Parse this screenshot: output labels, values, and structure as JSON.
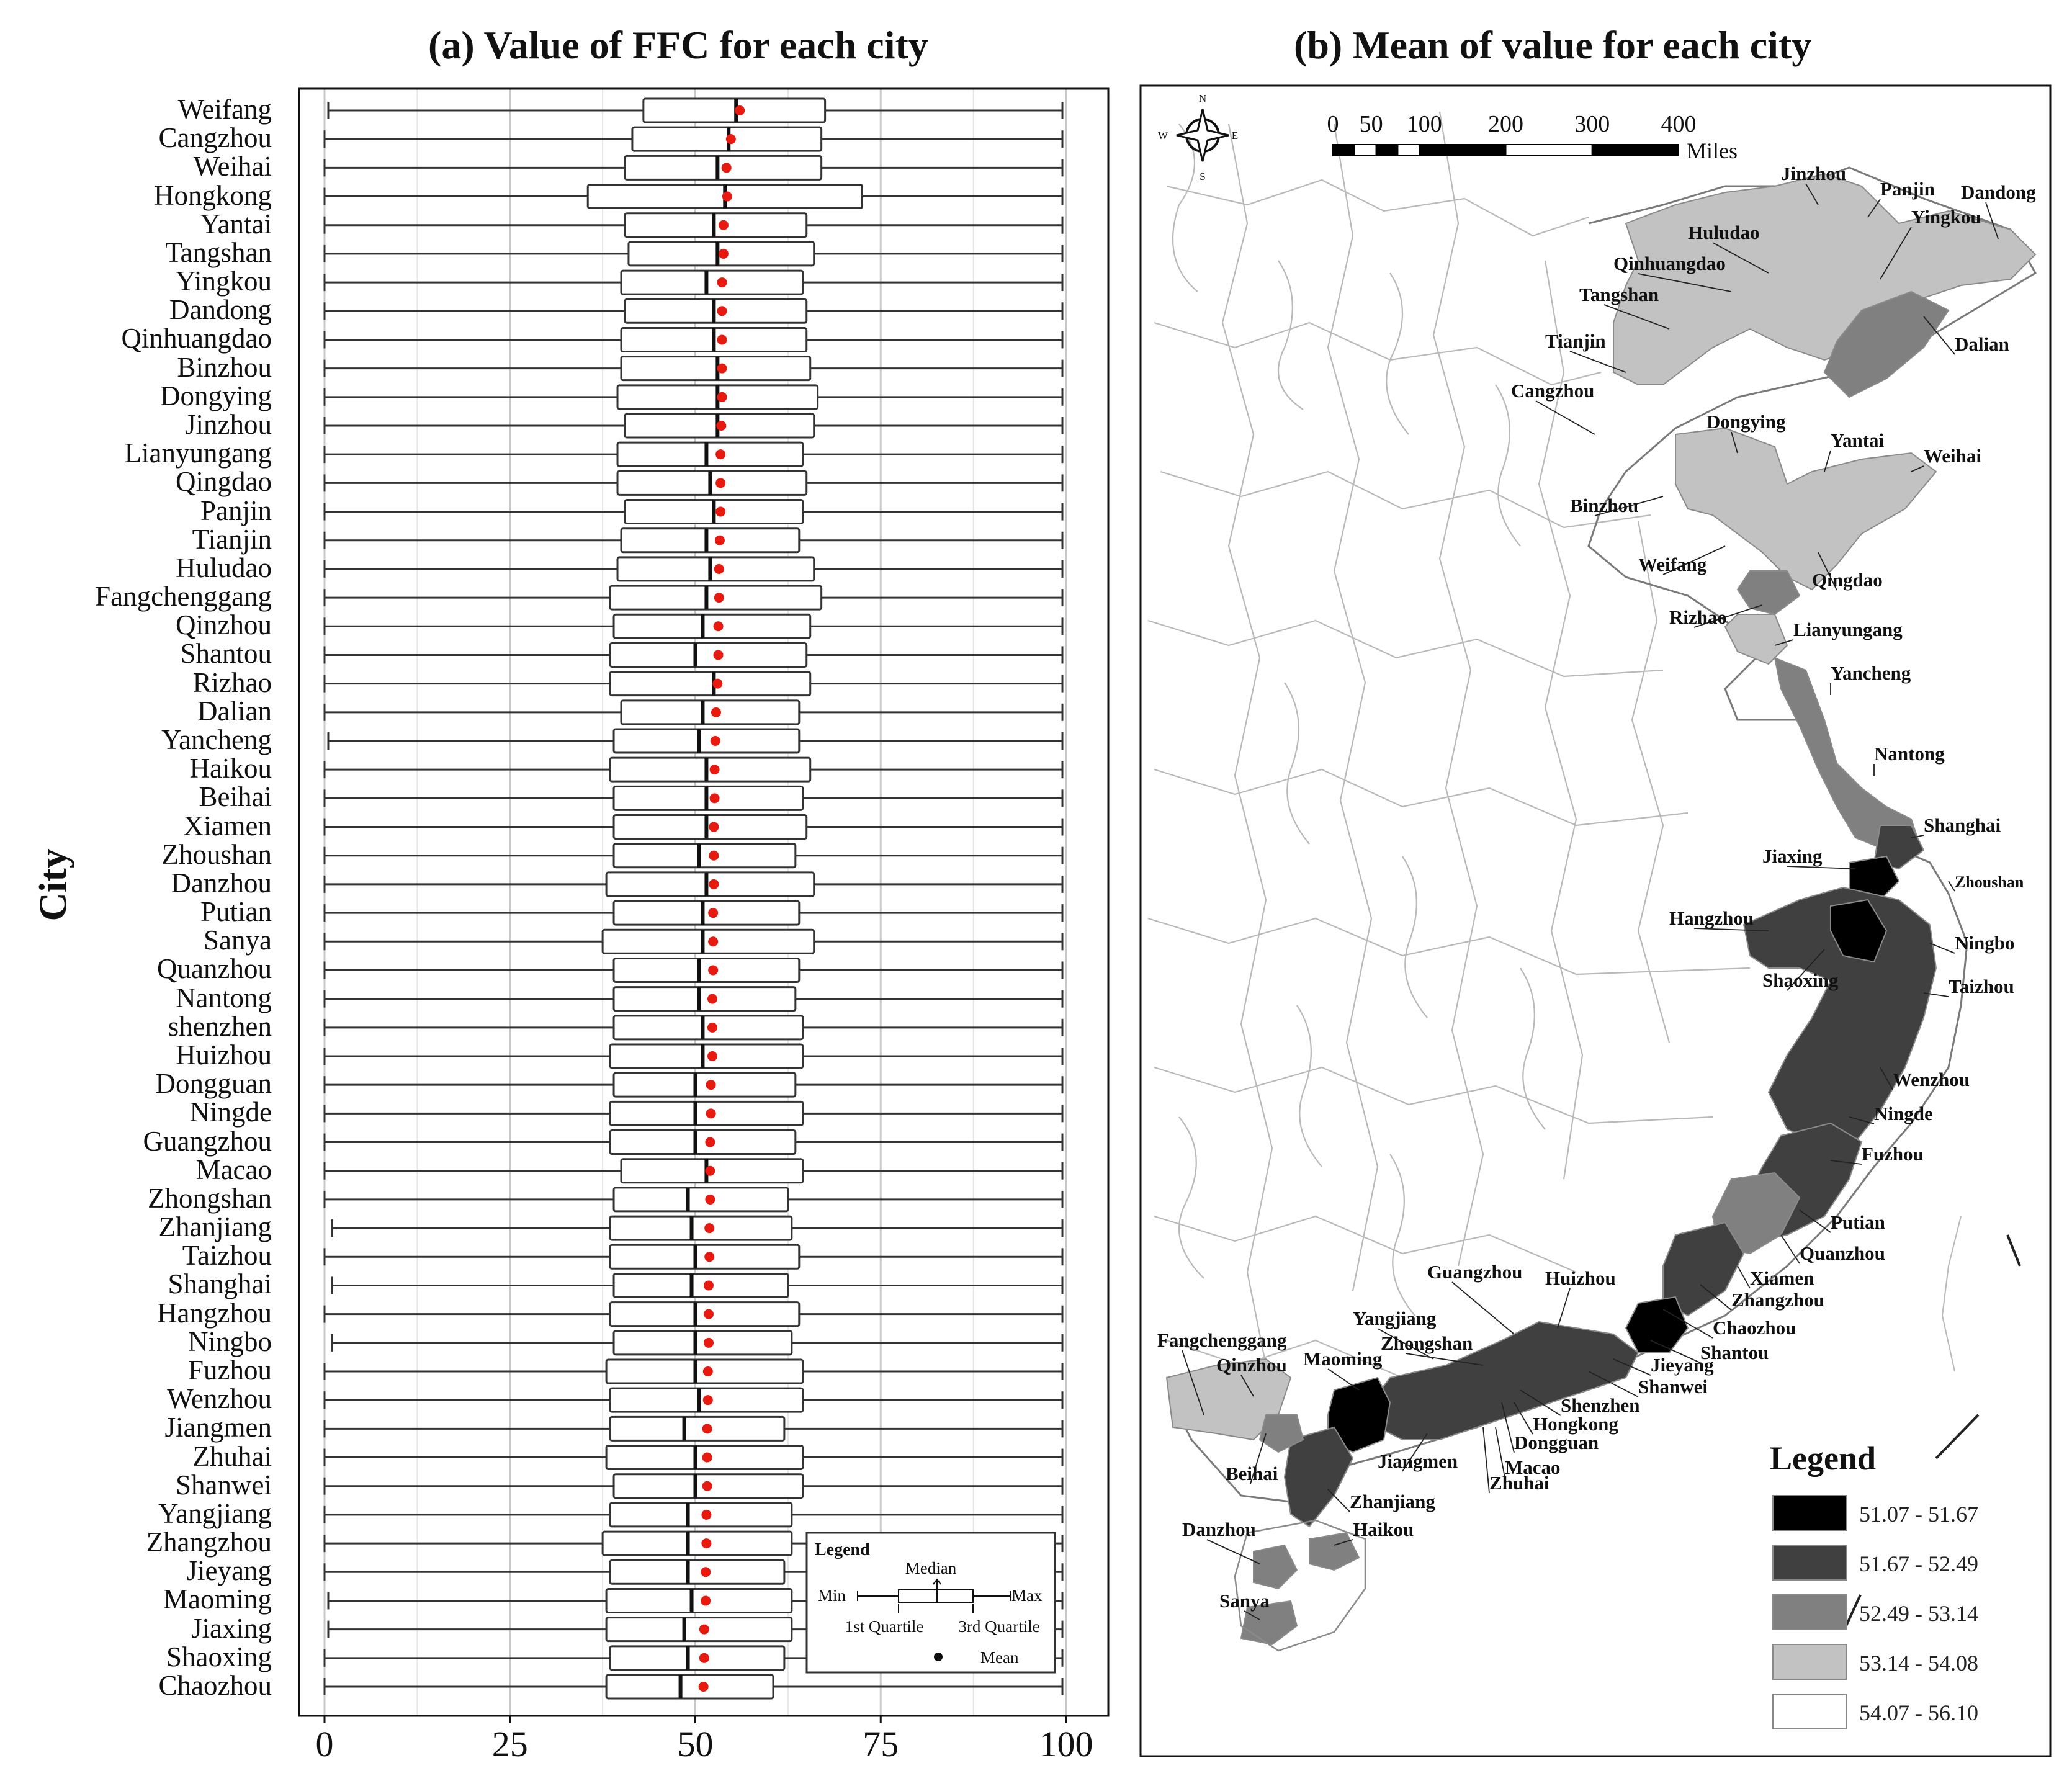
{
  "panel_a": {
    "title": "(a) Value of FFC for each city",
    "y_axis_label": "City",
    "legend": {
      "title": "Legend",
      "min": "Min",
      "median": "Median",
      "max": "Max",
      "q1": "1st Quartile",
      "q3": "3rd Quartile",
      "mean": "Mean"
    }
  },
  "panel_b": {
    "title": "(b) Mean of  value  for each city",
    "compass": {
      "n": "N",
      "s": "S",
      "e": "E",
      "w": "W"
    },
    "scale": {
      "ticks": [
        "0",
        "50",
        "100",
        "200",
        "300",
        "400"
      ],
      "unit": "Miles"
    },
    "legend": {
      "title": "Legend",
      "classes": [
        {
          "label": "51.07 - 51.67",
          "color": "#000000"
        },
        {
          "label": "51.67 - 52.49",
          "color": "#404040"
        },
        {
          "label": "52.49 - 53.14",
          "color": "#808080"
        },
        {
          "label": "53.14 - 54.08",
          "color": "#c2c2c2"
        },
        {
          "label": "54.07 - 56.10",
          "color": "#ffffff"
        }
      ]
    },
    "city_labels": [
      "Jinzhou",
      "Panjin",
      "Dandong",
      "Huludao",
      "Yingkou",
      "Qinhuangdao",
      "Tangshan",
      "Dalian",
      "Tianjin",
      "Cangzhou",
      "Dongying",
      "Yantai",
      "Weihai",
      "Binzhou",
      "Weifang",
      "Qingdao",
      "Rizhao",
      "Lianyungang",
      "Yancheng",
      "Nantong",
      "Shanghai",
      "Jiaxing",
      "Zhoushan",
      "Hangzhou",
      "Ningbo",
      "Shaoxing",
      "Taizhou",
      "Wenzhou",
      "Ningde",
      "Fuzhou",
      "Putian",
      "Quanzhou",
      "Xiamen",
      "Zhangzhou",
      "Guangzhou",
      "Huizhou",
      "Chaozhou",
      "Shantou",
      "Yangjiang",
      "Zhongshan",
      "Fangchenggang",
      "Qinzhou",
      "Maoming",
      "Jieyang",
      "Shanwei",
      "Shenzhen",
      "Hongkong",
      "Dongguan",
      "Jiangmen",
      "Macao",
      "Zhuhai",
      "Beihai",
      "Zhanjiang",
      "Haikou",
      "Danzhou",
      "Sanya"
    ]
  },
  "chart_data": [
    {
      "type": "box",
      "title": "(a) Value of FFC for each city",
      "ylabel": "City",
      "xlim": [
        0,
        100
      ],
      "x_ticks": [
        0,
        25,
        50,
        75,
        100
      ],
      "grid": true,
      "legend_placement": "bottom-right",
      "series": [
        {
          "city": "Weifang",
          "min": 0.5,
          "q1": 43,
          "median": 55.5,
          "q3": 67.5,
          "max": 99.5,
          "mean": 56
        },
        {
          "city": "Cangzhou",
          "min": 0,
          "q1": 41.5,
          "median": 54.5,
          "q3": 67,
          "max": 99.5,
          "mean": 54.8
        },
        {
          "city": "Weihai",
          "min": 0,
          "q1": 40.5,
          "median": 53,
          "q3": 67,
          "max": 99.5,
          "mean": 54.2
        },
        {
          "city": "Hongkong",
          "min": 0,
          "q1": 35.5,
          "median": 54,
          "q3": 72.5,
          "max": 99.5,
          "mean": 54.3
        },
        {
          "city": "Yantai",
          "min": 0,
          "q1": 40.5,
          "median": 52.5,
          "q3": 65,
          "max": 99.5,
          "mean": 53.8
        },
        {
          "city": "Tangshan",
          "min": 0,
          "q1": 41,
          "median": 53,
          "q3": 66,
          "max": 99.5,
          "mean": 53.8
        },
        {
          "city": "Yingkou",
          "min": 0,
          "q1": 40,
          "median": 51.5,
          "q3": 64.5,
          "max": 99.5,
          "mean": 53.6
        },
        {
          "city": "Dandong",
          "min": 0,
          "q1": 40.5,
          "median": 52.5,
          "q3": 65,
          "max": 99.5,
          "mean": 53.6
        },
        {
          "city": "Qinhuangdao",
          "min": 0,
          "q1": 40,
          "median": 52.5,
          "q3": 65,
          "max": 99.5,
          "mean": 53.6
        },
        {
          "city": "Binzhou",
          "min": 0,
          "q1": 40,
          "median": 53,
          "q3": 65.5,
          "max": 99.5,
          "mean": 53.6
        },
        {
          "city": "Dongying",
          "min": 0,
          "q1": 39.5,
          "median": 53,
          "q3": 66.5,
          "max": 99.5,
          "mean": 53.6
        },
        {
          "city": "Jinzhou",
          "min": 0,
          "q1": 40.5,
          "median": 53,
          "q3": 66,
          "max": 99.5,
          "mean": 53.5
        },
        {
          "city": "Lianyungang",
          "min": 0,
          "q1": 39.5,
          "median": 51.5,
          "q3": 64.5,
          "max": 99.5,
          "mean": 53.4
        },
        {
          "city": "Qingdao",
          "min": 0,
          "q1": 39.5,
          "median": 52,
          "q3": 65,
          "max": 99.5,
          "mean": 53.4
        },
        {
          "city": "Panjin",
          "min": 0,
          "q1": 40.5,
          "median": 52.5,
          "q3": 64.5,
          "max": 99.5,
          "mean": 53.4
        },
        {
          "city": "Tianjin",
          "min": 0,
          "q1": 40,
          "median": 51.5,
          "q3": 64,
          "max": 99.5,
          "mean": 53.3
        },
        {
          "city": "Huludao",
          "min": 0,
          "q1": 39.5,
          "median": 52,
          "q3": 66,
          "max": 99.5,
          "mean": 53.2
        },
        {
          "city": "Fangchenggang",
          "min": 0,
          "q1": 38.5,
          "median": 51.5,
          "q3": 67,
          "max": 99.5,
          "mean": 53.2
        },
        {
          "city": "Qinzhou",
          "min": 0,
          "q1": 39,
          "median": 51,
          "q3": 65.5,
          "max": 99.5,
          "mean": 53.1
        },
        {
          "city": "Shantou",
          "min": 0,
          "q1": 38.5,
          "median": 50,
          "q3": 65,
          "max": 99.5,
          "mean": 53.1
        },
        {
          "city": "Rizhao",
          "min": 0,
          "q1": 38.5,
          "median": 52.5,
          "q3": 65.5,
          "max": 99.5,
          "mean": 53
        },
        {
          "city": "Dalian",
          "min": 0,
          "q1": 40,
          "median": 51,
          "q3": 64,
          "max": 99.5,
          "mean": 52.8
        },
        {
          "city": "Yancheng",
          "min": 0.5,
          "q1": 39,
          "median": 50.5,
          "q3": 64,
          "max": 99.5,
          "mean": 52.7
        },
        {
          "city": "Haikou",
          "min": 0,
          "q1": 38.5,
          "median": 51.5,
          "q3": 65.5,
          "max": 99.5,
          "mean": 52.6
        },
        {
          "city": "Beihai",
          "min": 0,
          "q1": 39,
          "median": 51.5,
          "q3": 64.5,
          "max": 99.5,
          "mean": 52.6
        },
        {
          "city": "Xiamen",
          "min": 0,
          "q1": 39,
          "median": 51.5,
          "q3": 65,
          "max": 99.5,
          "mean": 52.5
        },
        {
          "city": "Zhoushan",
          "min": 0,
          "q1": 39,
          "median": 50.5,
          "q3": 63.5,
          "max": 99.5,
          "mean": 52.5
        },
        {
          "city": "Danzhou",
          "min": 0,
          "q1": 38,
          "median": 51.5,
          "q3": 66,
          "max": 99.5,
          "mean": 52.5
        },
        {
          "city": "Putian",
          "min": 0,
          "q1": 39,
          "median": 51,
          "q3": 64,
          "max": 99.5,
          "mean": 52.4
        },
        {
          "city": "Sanya",
          "min": 0,
          "q1": 37.5,
          "median": 51,
          "q3": 66,
          "max": 99.5,
          "mean": 52.4
        },
        {
          "city": "Quanzhou",
          "min": 0,
          "q1": 39,
          "median": 50.5,
          "q3": 64,
          "max": 99.5,
          "mean": 52.4
        },
        {
          "city": "Nantong",
          "min": 0,
          "q1": 39,
          "median": 50.5,
          "q3": 63.5,
          "max": 99.5,
          "mean": 52.3
        },
        {
          "city": "shenzhen",
          "min": 0,
          "q1": 39,
          "median": 51,
          "q3": 64.5,
          "max": 99.5,
          "mean": 52.3
        },
        {
          "city": "Huizhou",
          "min": 0,
          "q1": 38.5,
          "median": 51,
          "q3": 64.5,
          "max": 99.5,
          "mean": 52.3
        },
        {
          "city": "Dongguan",
          "min": 0,
          "q1": 39,
          "median": 50,
          "q3": 63.5,
          "max": 99.5,
          "mean": 52.1
        },
        {
          "city": "Ningde",
          "min": 0,
          "q1": 38.5,
          "median": 50,
          "q3": 64.5,
          "max": 99.5,
          "mean": 52.1
        },
        {
          "city": "Guangzhou",
          "min": 0,
          "q1": 38.5,
          "median": 50,
          "q3": 63.5,
          "max": 99.5,
          "mean": 52
        },
        {
          "city": "Macao",
          "min": 0,
          "q1": 40,
          "median": 51.5,
          "q3": 64.5,
          "max": 99.5,
          "mean": 52
        },
        {
          "city": "Zhongshan",
          "min": 0,
          "q1": 39,
          "median": 49,
          "q3": 62.5,
          "max": 99.5,
          "mean": 52
        },
        {
          "city": "Zhanjiang",
          "min": 1,
          "q1": 38.5,
          "median": 49.5,
          "q3": 63,
          "max": 99.5,
          "mean": 51.9
        },
        {
          "city": "Taizhou",
          "min": 0,
          "q1": 38.5,
          "median": 50,
          "q3": 64,
          "max": 99.5,
          "mean": 51.9
        },
        {
          "city": "Shanghai",
          "min": 1,
          "q1": 39,
          "median": 49.5,
          "q3": 62.5,
          "max": 99.5,
          "mean": 51.8
        },
        {
          "city": "Hangzhou",
          "min": 0,
          "q1": 38.5,
          "median": 50,
          "q3": 64,
          "max": 99.5,
          "mean": 51.8
        },
        {
          "city": "Ningbo",
          "min": 1,
          "q1": 39,
          "median": 50,
          "q3": 63,
          "max": 99.5,
          "mean": 51.8
        },
        {
          "city": "Fuzhou",
          "min": 0,
          "q1": 38,
          "median": 50,
          "q3": 64.5,
          "max": 99.5,
          "mean": 51.7
        },
        {
          "city": "Wenzhou",
          "min": 0,
          "q1": 38.5,
          "median": 50.5,
          "q3": 64.5,
          "max": 99.5,
          "mean": 51.7
        },
        {
          "city": "Jiangmen",
          "min": 0,
          "q1": 38.5,
          "median": 48.5,
          "q3": 62,
          "max": 99.5,
          "mean": 51.6
        },
        {
          "city": "Zhuhai",
          "min": 0,
          "q1": 38,
          "median": 50,
          "q3": 64.5,
          "max": 99.5,
          "mean": 51.6
        },
        {
          "city": "Shanwei",
          "min": 0,
          "q1": 39,
          "median": 50,
          "q3": 64.5,
          "max": 99.5,
          "mean": 51.6
        },
        {
          "city": "Yangjiang",
          "min": 0,
          "q1": 38.5,
          "median": 49,
          "q3": 63,
          "max": 99.5,
          "mean": 51.5
        },
        {
          "city": "Zhangzhou",
          "min": 0,
          "q1": 37.5,
          "median": 49,
          "q3": 63,
          "max": 99.5,
          "mean": 51.5
        },
        {
          "city": "Jieyang",
          "min": 0,
          "q1": 38.5,
          "median": 49,
          "q3": 62,
          "max": 99.5,
          "mean": 51.4
        },
        {
          "city": "Maoming",
          "min": 0.5,
          "q1": 38,
          "median": 49.5,
          "q3": 63,
          "max": 99.5,
          "mean": 51.4
        },
        {
          "city": "Jiaxing",
          "min": 0.5,
          "q1": 38,
          "median": 48.5,
          "q3": 63,
          "max": 99.5,
          "mean": 51.2
        },
        {
          "city": "Shaoxing",
          "min": 0,
          "q1": 38.5,
          "median": 49,
          "q3": 62,
          "max": 99.5,
          "mean": 51.2
        },
        {
          "city": "Chaozhou",
          "min": 0,
          "q1": 38,
          "median": 48,
          "q3": 60.5,
          "max": 99.5,
          "mean": 51.1
        }
      ]
    },
    {
      "type": "choropleth-map",
      "title": "(b) Mean of  value  for each city",
      "legend_placement": "bottom-right",
      "classes": [
        "51.07 - 51.67",
        "51.67 - 52.49",
        "52.49 - 53.14",
        "53.14 - 54.08",
        "54.07 - 56.10"
      ]
    }
  ]
}
